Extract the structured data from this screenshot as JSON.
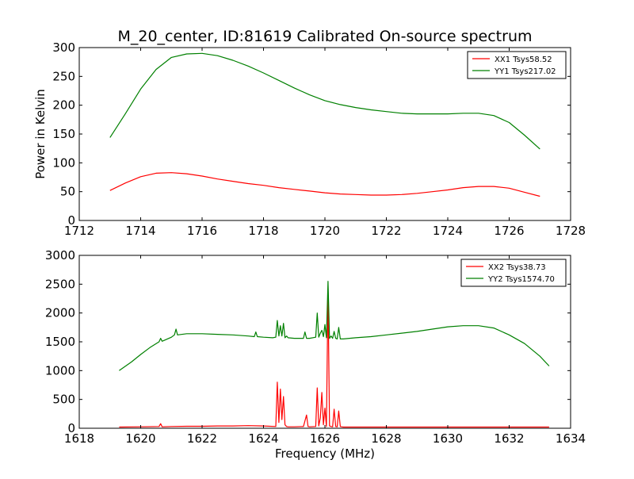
{
  "figure": {
    "title": "M_20_center, ID:81619 Calibrated On-source spectrum",
    "colors": {
      "xx": "#ff0000",
      "yy": "#008000",
      "axes": "#000000",
      "background": "#ffffff"
    }
  },
  "chart_data": [
    {
      "type": "line",
      "title": "M_20_center, ID:81619 Calibrated On-source spectrum",
      "xlabel": "",
      "ylabel": "Power in Kelvin",
      "xlim": [
        1712,
        1728
      ],
      "ylim": [
        0,
        300
      ],
      "xticks": [
        "1712",
        "1714",
        "1716",
        "1718",
        "1720",
        "1722",
        "1724",
        "1726",
        "1728"
      ],
      "yticks": [
        "0",
        "50",
        "100",
        "150",
        "200",
        "250",
        "300"
      ],
      "grid": false,
      "legend_position": "top-right",
      "series": [
        {
          "name": "XX1 Tsys58.52",
          "color": "#ff0000",
          "x": [
            1713.0,
            1713.5,
            1714.0,
            1714.5,
            1715.0,
            1715.5,
            1716.0,
            1716.5,
            1717.0,
            1717.5,
            1718.0,
            1718.5,
            1719.0,
            1719.5,
            1720.0,
            1720.5,
            1721.0,
            1721.5,
            1722.0,
            1722.5,
            1723.0,
            1723.5,
            1724.0,
            1724.5,
            1725.0,
            1725.5,
            1726.0,
            1726.5,
            1727.0
          ],
          "y": [
            52,
            65,
            76,
            82,
            83,
            81,
            77,
            72,
            68,
            64,
            61,
            57,
            54,
            51,
            48,
            46,
            45,
            44,
            44,
            45,
            47,
            50,
            53,
            57,
            59,
            59,
            56,
            49,
            42
          ]
        },
        {
          "name": "YY1 Tsys217.02",
          "color": "#008000",
          "x": [
            1713.0,
            1713.5,
            1714.0,
            1714.5,
            1715.0,
            1715.5,
            1716.0,
            1716.5,
            1717.0,
            1717.5,
            1718.0,
            1718.5,
            1719.0,
            1719.5,
            1720.0,
            1720.5,
            1721.0,
            1721.5,
            1722.0,
            1722.5,
            1723.0,
            1723.5,
            1724.0,
            1724.5,
            1725.0,
            1725.5,
            1726.0,
            1726.5,
            1727.0
          ],
          "y": [
            144,
            185,
            228,
            262,
            283,
            289,
            290,
            286,
            278,
            268,
            256,
            243,
            230,
            218,
            208,
            201,
            196,
            192,
            189,
            186,
            185,
            185,
            185,
            186,
            186,
            182,
            170,
            148,
            124
          ]
        }
      ]
    },
    {
      "type": "line",
      "title": "",
      "xlabel": "Frequency (MHz)",
      "ylabel": "",
      "xlim": [
        1618,
        1634
      ],
      "ylim": [
        0,
        3000
      ],
      "xticks": [
        "1618",
        "1620",
        "1622",
        "1624",
        "1626",
        "1628",
        "1630",
        "1632",
        "1634"
      ],
      "yticks": [
        "0",
        "500",
        "1000",
        "1500",
        "2000",
        "2500",
        "3000"
      ],
      "grid": false,
      "legend_position": "top-right",
      "series": [
        {
          "name": "XX2 Tsys38.73",
          "color": "#ff0000",
          "x": [
            1619.3,
            1620.0,
            1620.6,
            1620.65,
            1620.7,
            1621.0,
            1621.5,
            1622.0,
            1622.5,
            1623.0,
            1623.5,
            1624.0,
            1624.4,
            1624.45,
            1624.5,
            1624.55,
            1624.6,
            1624.65,
            1624.7,
            1624.75,
            1624.8,
            1625.0,
            1625.3,
            1625.4,
            1625.45,
            1625.5,
            1625.7,
            1625.75,
            1625.8,
            1625.85,
            1625.9,
            1625.95,
            1626.0,
            1626.05,
            1626.1,
            1626.15,
            1626.2,
            1626.25,
            1626.3,
            1626.35,
            1626.4,
            1626.45,
            1626.5,
            1626.55,
            1626.6,
            1626.7,
            1627.0,
            1628.0,
            1629.0,
            1630.0,
            1631.0,
            1632.0,
            1633.3
          ],
          "y": [
            20,
            25,
            30,
            80,
            25,
            30,
            35,
            35,
            40,
            40,
            45,
            40,
            30,
            800,
            100,
            680,
            150,
            550,
            60,
            30,
            25,
            25,
            30,
            230,
            30,
            25,
            30,
            700,
            40,
            180,
            620,
            60,
            350,
            30,
            2400,
            40,
            30,
            25,
            330,
            30,
            25,
            300,
            30,
            25,
            20,
            20,
            20,
            20,
            20,
            20,
            20,
            20,
            20
          ]
        },
        {
          "name": "YY2 Tsys1574.70",
          "color": "#008000",
          "x": [
            1619.3,
            1619.7,
            1620.0,
            1620.3,
            1620.6,
            1620.65,
            1620.7,
            1621.0,
            1621.1,
            1621.15,
            1621.2,
            1621.5,
            1622.0,
            1622.5,
            1623.0,
            1623.5,
            1623.7,
            1623.75,
            1623.8,
            1624.0,
            1624.3,
            1624.4,
            1624.45,
            1624.5,
            1624.55,
            1624.6,
            1624.65,
            1624.7,
            1624.75,
            1624.8,
            1625.0,
            1625.3,
            1625.35,
            1625.4,
            1625.45,
            1625.5,
            1625.7,
            1625.75,
            1625.8,
            1625.85,
            1625.9,
            1625.95,
            1626.0,
            1626.05,
            1626.1,
            1626.15,
            1626.2,
            1626.25,
            1626.3,
            1626.35,
            1626.4,
            1626.45,
            1626.5,
            1626.55,
            1626.6,
            1627.0,
            1627.5,
            1628.0,
            1628.5,
            1629.0,
            1629.5,
            1630.0,
            1630.5,
            1631.0,
            1631.5,
            1632.0,
            1632.5,
            1633.0,
            1633.3
          ],
          "y": [
            1000,
            1150,
            1280,
            1400,
            1500,
            1560,
            1510,
            1580,
            1620,
            1720,
            1620,
            1640,
            1640,
            1630,
            1620,
            1600,
            1590,
            1670,
            1590,
            1580,
            1570,
            1580,
            1870,
            1600,
            1780,
            1600,
            1820,
            1570,
            1600,
            1570,
            1560,
            1560,
            1670,
            1560,
            1560,
            1560,
            1580,
            2000,
            1580,
            1650,
            1700,
            1590,
            1800,
            1570,
            2550,
            1560,
            1600,
            1560,
            1680,
            1560,
            1550,
            1750,
            1550,
            1550,
            1550,
            1570,
            1590,
            1620,
            1650,
            1680,
            1720,
            1760,
            1780,
            1780,
            1740,
            1620,
            1470,
            1250,
            1080
          ]
        }
      ]
    }
  ]
}
